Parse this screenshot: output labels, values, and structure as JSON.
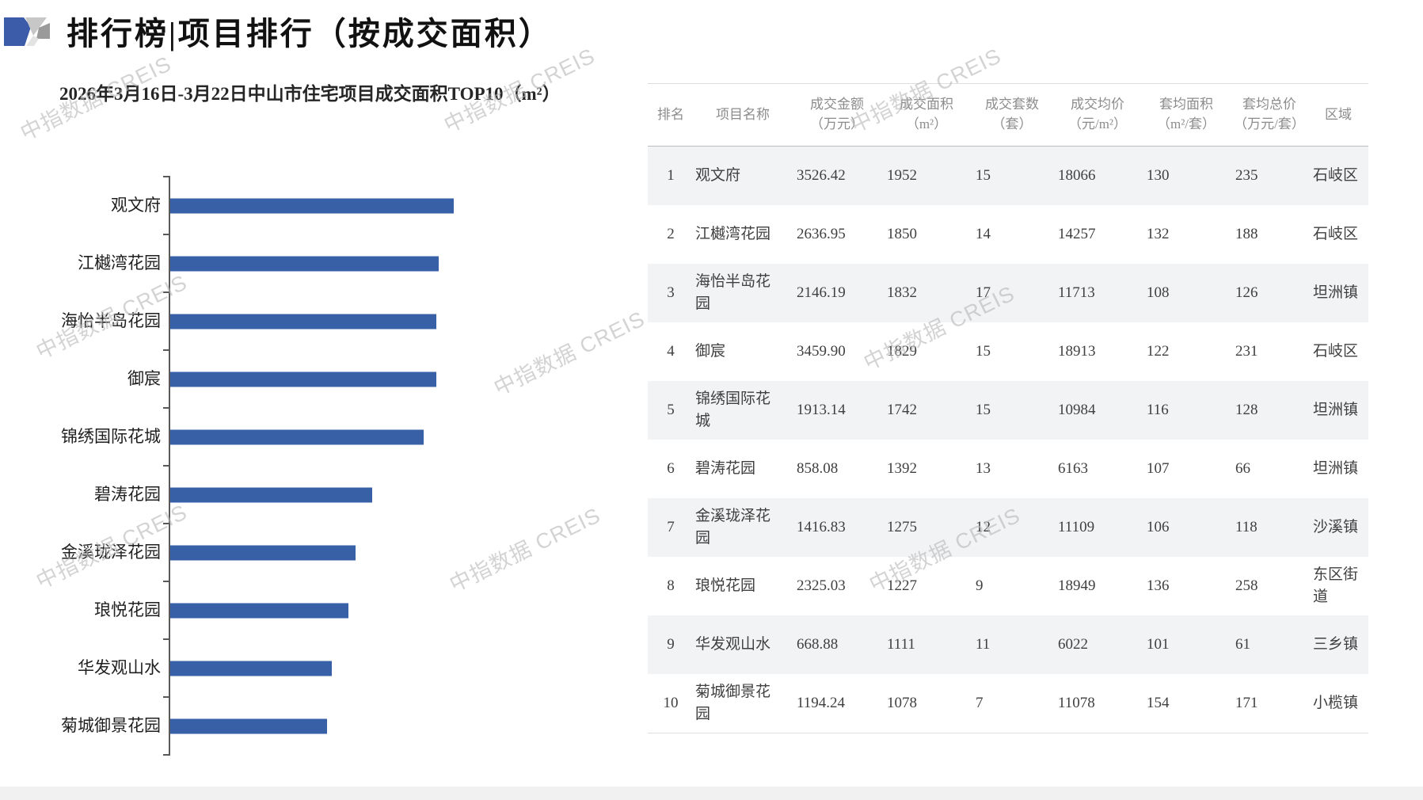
{
  "header": {
    "title": "排行榜|项目排行（按成交面积）"
  },
  "chart": {
    "title": "2026年3月16日-3月22日中山市住宅项目成交面积TOP10（m²）"
  },
  "chart_data": {
    "type": "bar",
    "orientation": "horizontal",
    "title": "2026年3月16日-3月22日中山市住宅项目成交面积TOP10（m²）",
    "series_name": "成交面积(m²)",
    "categories": [
      "观文府",
      "江樾湾花园",
      "海怡半岛花园",
      "御宸",
      "锦绣国际花城",
      "碧涛花园",
      "金溪珑泽花园",
      "琅悦花园",
      "华发观山水",
      "菊城御景花园"
    ],
    "values": [
      1952,
      1850,
      1832,
      1829,
      1742,
      1392,
      1275,
      1227,
      1111,
      1078
    ],
    "xlabel": "",
    "ylabel": "",
    "value_axis_labels_visible": false,
    "grid": false,
    "legend": false,
    "bar_color": "#3760a6"
  },
  "table": {
    "columns": [
      "排名",
      "项目名称",
      "成交金额\n（万元）",
      "成交面积\n（m²）",
      "成交套数\n（套）",
      "成交均价\n（元/m²）",
      "套均面积\n（m²/套）",
      "套均总价\n（万元/套）",
      "区域"
    ],
    "rows": [
      [
        "1",
        "观文府",
        "3526.42",
        "1952",
        "15",
        "18066",
        "130",
        "235",
        "石岐区"
      ],
      [
        "2",
        "江樾湾花园",
        "2636.95",
        "1850",
        "14",
        "14257",
        "132",
        "188",
        "石岐区"
      ],
      [
        "3",
        "海怡半岛花园",
        "2146.19",
        "1832",
        "17",
        "11713",
        "108",
        "126",
        "坦洲镇"
      ],
      [
        "4",
        "御宸",
        "3459.90",
        "1829",
        "15",
        "18913",
        "122",
        "231",
        "石岐区"
      ],
      [
        "5",
        "锦绣国际花城",
        "1913.14",
        "1742",
        "15",
        "10984",
        "116",
        "128",
        "坦洲镇"
      ],
      [
        "6",
        "碧涛花园",
        "858.08",
        "1392",
        "13",
        "6163",
        "107",
        "66",
        "坦洲镇"
      ],
      [
        "7",
        "金溪珑泽花园",
        "1416.83",
        "1275",
        "12",
        "11109",
        "106",
        "118",
        "沙溪镇"
      ],
      [
        "8",
        "琅悦花园",
        "2325.03",
        "1227",
        "9",
        "18949",
        "136",
        "258",
        "东区街道"
      ],
      [
        "9",
        "华发观山水",
        "668.88",
        "1111",
        "11",
        "6022",
        "101",
        "61",
        "三乡镇"
      ],
      [
        "10",
        "菊城御景花园",
        "1194.24",
        "1078",
        "7",
        "11078",
        "154",
        "171",
        "小榄镇"
      ]
    ]
  },
  "watermark": {
    "text": "中指数据 CREIS"
  },
  "colors": {
    "bar": "#3760a6",
    "stripe": "#f2f3f5",
    "header_text": "#8c8c8c",
    "body_text": "#404040"
  }
}
